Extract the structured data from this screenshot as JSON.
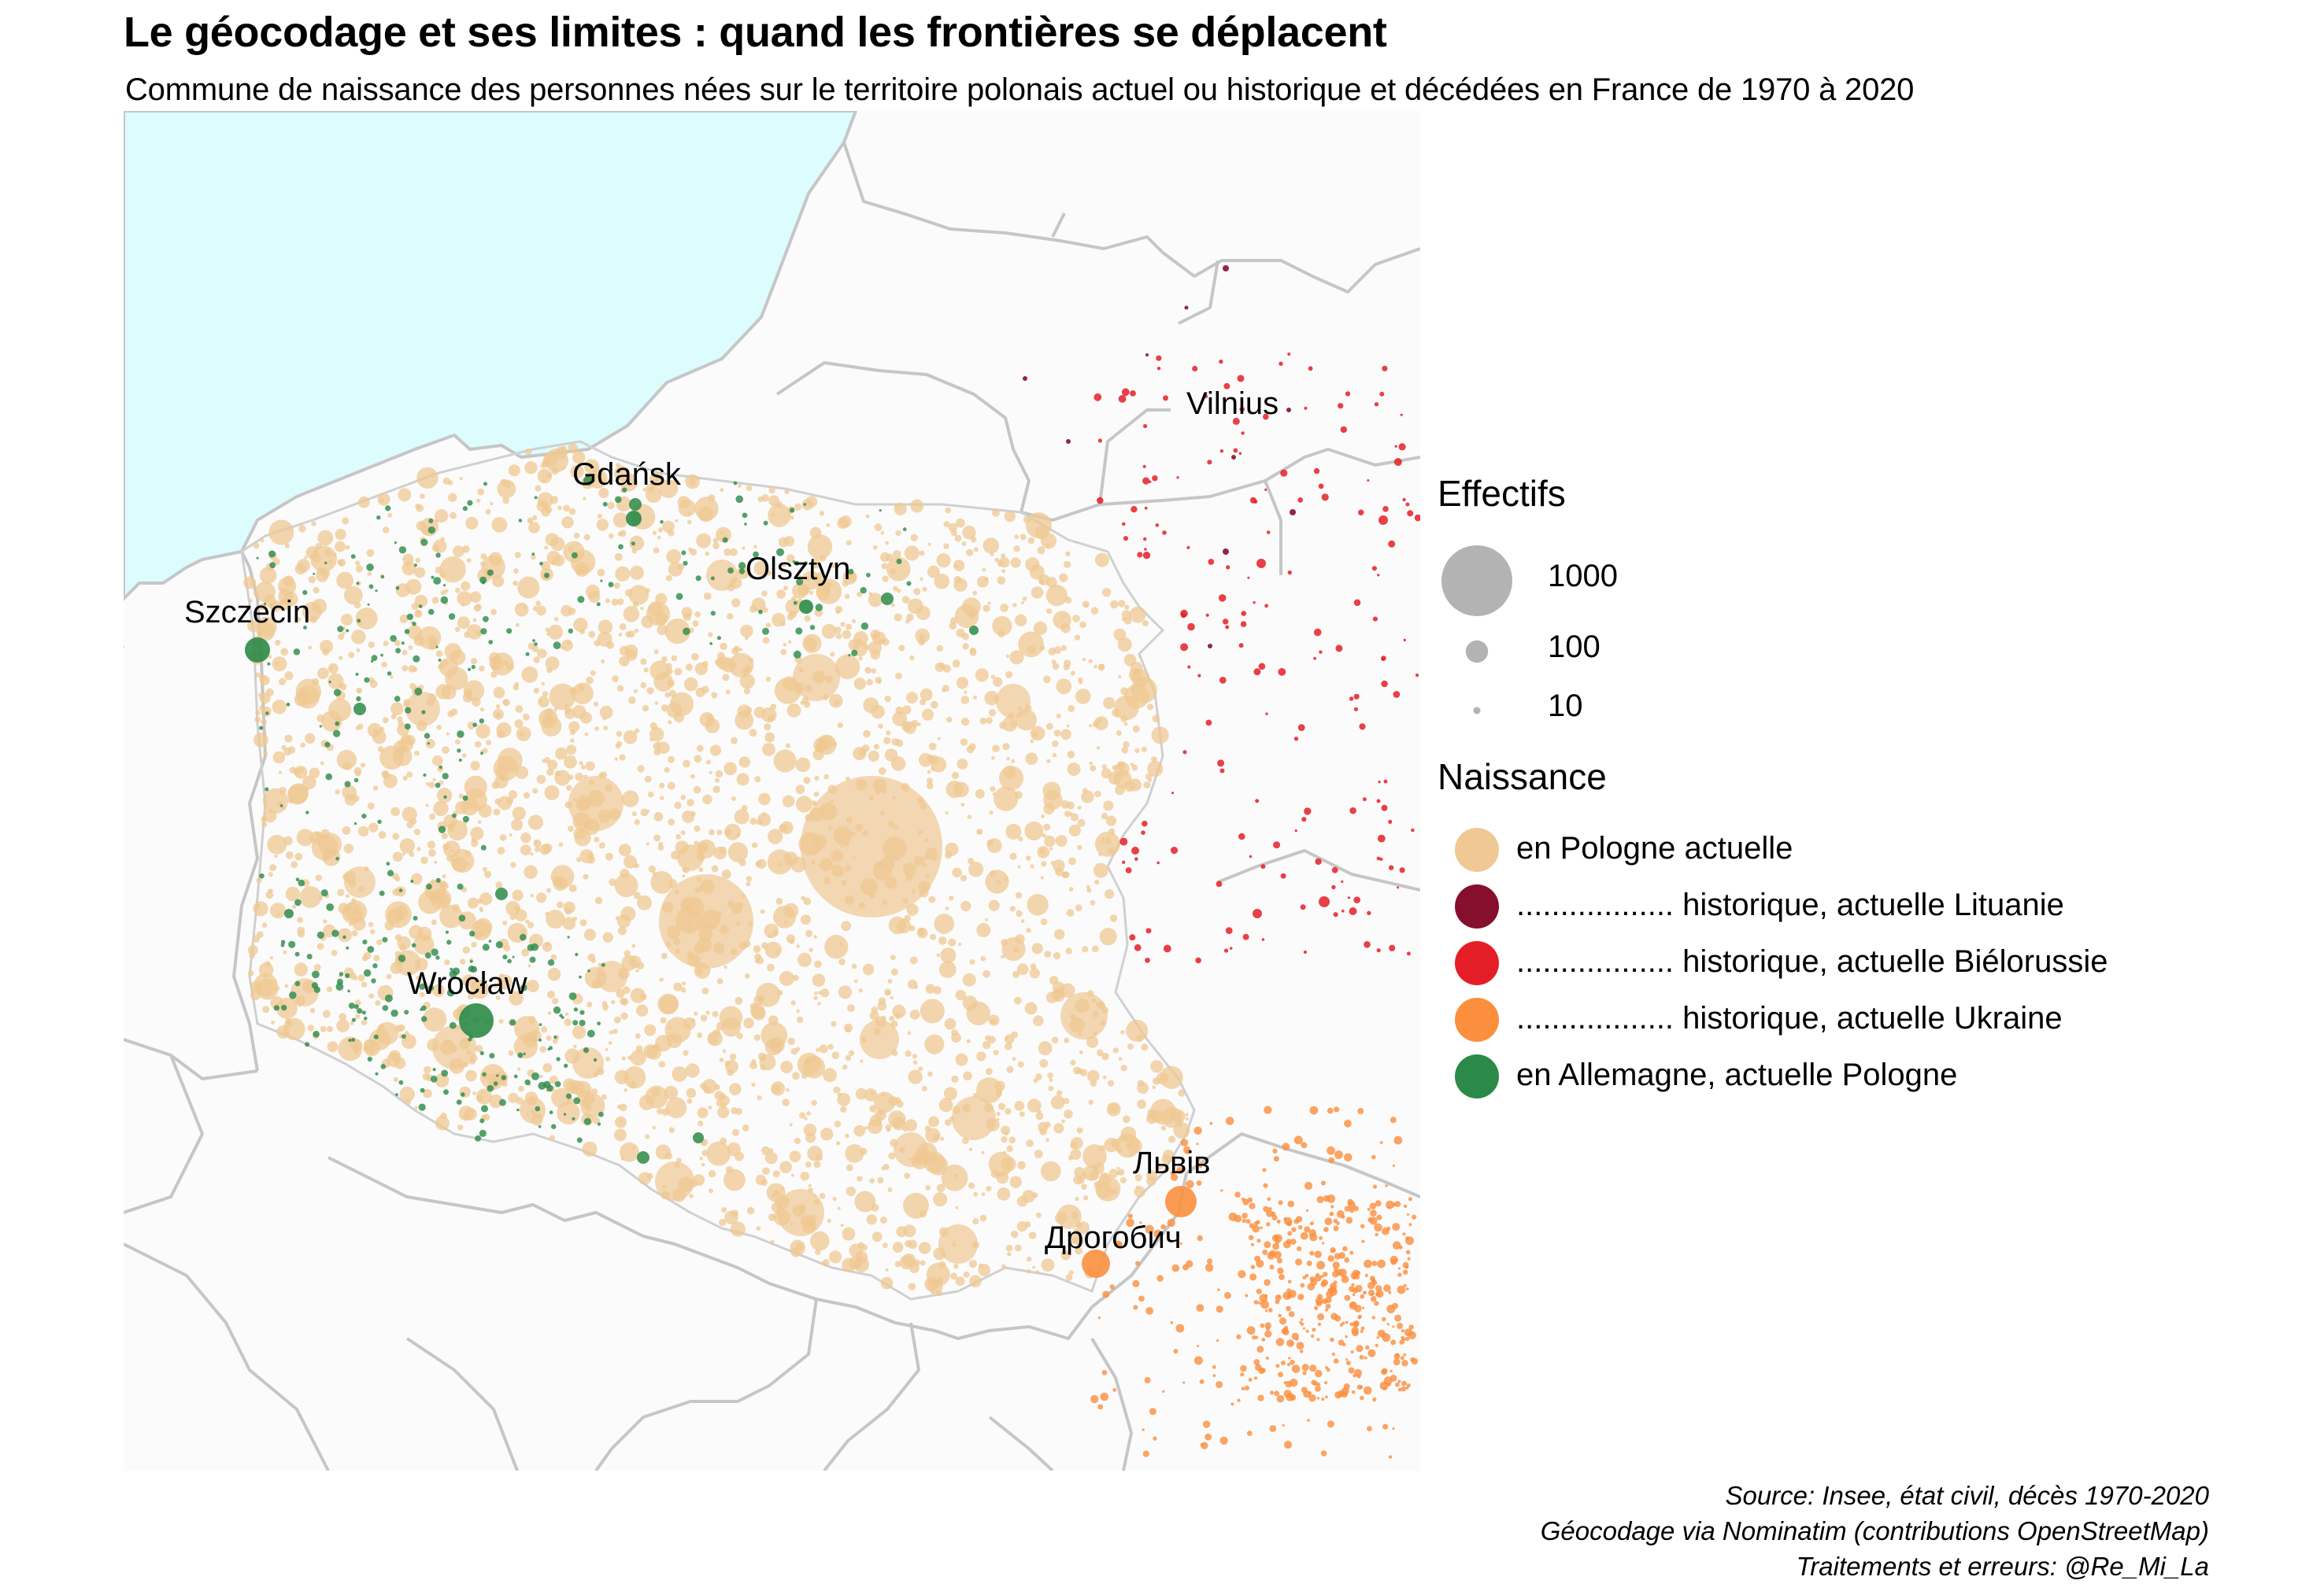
{
  "title": "Le géocodage et ses limites : quand les frontières se déplacent",
  "subtitle": "Commune de naissance des personnes nées sur le territoire polonais actuel ou historique et décédées en France de 1970 à 2020",
  "map": {
    "colors": {
      "sea": "#dcfcfd",
      "land": "#fbfbfb",
      "border": "#c6c6c6"
    },
    "cities": [
      {
        "name": "Gdańsk"
      },
      {
        "name": "Olsztyn"
      },
      {
        "name": "Szczecin"
      },
      {
        "name": "Vilnius"
      },
      {
        "name": "Wrocław"
      },
      {
        "name": "Львів"
      },
      {
        "name": "Дрогобич"
      }
    ]
  },
  "legend": {
    "size_title": "Effectifs",
    "sizes": [
      {
        "value": 1000,
        "label": "1000"
      },
      {
        "value": 100,
        "label": "100"
      },
      {
        "value": 10,
        "label": "10"
      }
    ],
    "size_color": "#b3b3b3",
    "color_title": "Naissance",
    "categories": [
      {
        "label": "en Pologne actuelle",
        "color": "#efc893"
      },
      {
        "label": ".................. historique, actuelle Lituanie",
        "color": "#850f2c"
      },
      {
        "label": ".................. historique, actuelle Biélorussie",
        "color": "#e41e26"
      },
      {
        "label": ".................. historique, actuelle Ukraine",
        "color": "#fb8f3e"
      },
      {
        "label": "en Allemagne, actuelle Pologne",
        "color": "#2b8a47"
      }
    ]
  },
  "credits": [
    "Source: Insee, état civil, décès 1970-2020",
    "Géocodage via Nominatim (contributions OpenStreetMap)",
    "Traitements et erreurs: @Re_Mi_La"
  ]
}
